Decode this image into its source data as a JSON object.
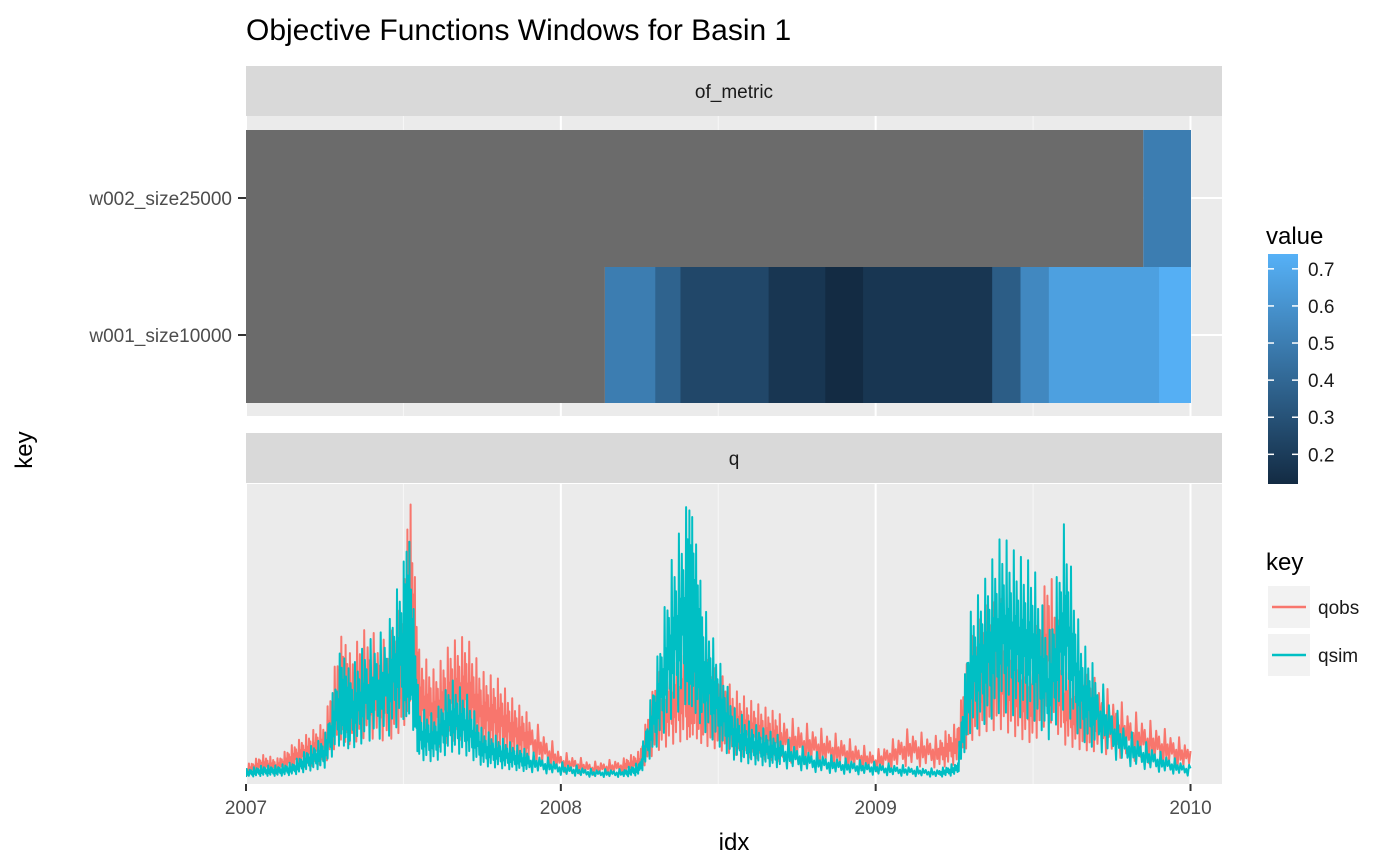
{
  "chart_data": {
    "type": "heatmap+line",
    "title": "Objective Functions Windows for Basin 1",
    "xlabel": "idx",
    "ylabel": "key",
    "xlim": [
      2007.0,
      2010.1
    ],
    "x_ticks": [
      "2007",
      "2008",
      "2009",
      "2010"
    ],
    "x_tick_values": [
      2007,
      2008,
      2009,
      2010
    ],
    "panels": [
      {
        "strip": "of_metric",
        "type": "heatmap",
        "categories": [
          "w002_size25000",
          "w001_size10000"
        ],
        "na_color": "#6b6b6b",
        "rows": [
          {
            "key": "w002_size25000",
            "start": 2007.0,
            "end": 2010.0,
            "data_start": 2009.85,
            "segments": [
              {
                "x0": 2009.85,
                "x1": 2010.0,
                "value": 0.5
              }
            ]
          },
          {
            "key": "w001_size10000",
            "start": 2007.0,
            "end": 2010.0,
            "data_start": 2008.14,
            "segments": [
              {
                "x0": 2008.14,
                "x1": 2008.3,
                "value": 0.5
              },
              {
                "x0": 2008.3,
                "x1": 2008.38,
                "value": 0.38
              },
              {
                "x0": 2008.38,
                "x1": 2008.66,
                "value": 0.25
              },
              {
                "x0": 2008.66,
                "x1": 2008.84,
                "value": 0.17
              },
              {
                "x0": 2008.84,
                "x1": 2008.96,
                "value": 0.12
              },
              {
                "x0": 2008.96,
                "x1": 2009.37,
                "value": 0.17
              },
              {
                "x0": 2009.37,
                "x1": 2009.46,
                "value": 0.35
              },
              {
                "x0": 2009.46,
                "x1": 2009.55,
                "value": 0.55
              },
              {
                "x0": 2009.55,
                "x1": 2009.9,
                "value": 0.66
              },
              {
                "x0": 2009.9,
                "x1": 2010.0,
                "value": 0.73
              }
            ]
          }
        ]
      },
      {
        "strip": "q",
        "type": "line",
        "series": [
          {
            "name": "qobs",
            "color": "#f8766d",
            "x": [
              2007.0,
              2007.05,
              2007.1,
              2007.15,
              2007.2,
              2007.25,
              2007.3,
              2007.33,
              2007.38,
              2007.45,
              2007.5,
              2007.52,
              2007.55,
              2007.6,
              2007.65,
              2007.7,
              2007.75,
              2007.8,
              2007.85,
              2007.9,
              2008.0,
              2008.1,
              2008.2,
              2008.25,
              2008.3,
              2008.35,
              2008.4,
              2008.42,
              2008.45,
              2008.5,
              2008.55,
              2008.6,
              2008.65,
              2008.7,
              2008.8,
              2008.9,
              2009.0,
              2009.1,
              2009.2,
              2009.26,
              2009.3,
              2009.35,
              2009.4,
              2009.45,
              2009.5,
              2009.55,
              2009.6,
              2009.65,
              2009.7,
              2009.8,
              2009.9,
              2010.0
            ],
            "y": [
              0.04,
              0.07,
              0.06,
              0.1,
              0.13,
              0.16,
              0.4,
              0.35,
              0.42,
              0.38,
              0.5,
              0.8,
              0.36,
              0.3,
              0.38,
              0.4,
              0.3,
              0.28,
              0.22,
              0.18,
              0.08,
              0.05,
              0.06,
              0.08,
              0.28,
              0.35,
              0.4,
              0.45,
              0.35,
              0.3,
              0.25,
              0.22,
              0.2,
              0.18,
              0.15,
              0.12,
              0.08,
              0.14,
              0.12,
              0.16,
              0.38,
              0.48,
              0.5,
              0.42,
              0.36,
              0.6,
              0.35,
              0.3,
              0.28,
              0.2,
              0.15,
              0.1
            ]
          },
          {
            "name": "qsim",
            "color": "#00bfc4",
            "x": [
              2007.0,
              2007.05,
              2007.1,
              2007.15,
              2007.2,
              2007.25,
              2007.3,
              2007.33,
              2007.38,
              2007.45,
              2007.5,
              2007.52,
              2007.55,
              2007.6,
              2007.65,
              2007.7,
              2007.75,
              2007.8,
              2007.85,
              2007.9,
              2008.0,
              2008.1,
              2008.2,
              2008.25,
              2008.3,
              2008.35,
              2008.4,
              2008.42,
              2008.45,
              2008.5,
              2008.55,
              2008.6,
              2008.65,
              2008.7,
              2008.8,
              2008.9,
              2009.0,
              2009.1,
              2009.2,
              2009.26,
              2009.3,
              2009.35,
              2009.4,
              2009.45,
              2009.5,
              2009.55,
              2009.6,
              2009.65,
              2009.7,
              2009.8,
              2009.9,
              2010.0
            ],
            "y": [
              0.03,
              0.04,
              0.04,
              0.05,
              0.09,
              0.12,
              0.36,
              0.3,
              0.38,
              0.42,
              0.6,
              0.66,
              0.2,
              0.18,
              0.28,
              0.24,
              0.14,
              0.12,
              0.1,
              0.08,
              0.05,
              0.03,
              0.03,
              0.05,
              0.3,
              0.6,
              0.76,
              0.72,
              0.5,
              0.34,
              0.2,
              0.16,
              0.14,
              0.12,
              0.08,
              0.06,
              0.05,
              0.04,
              0.03,
              0.05,
              0.46,
              0.56,
              0.68,
              0.62,
              0.6,
              0.4,
              0.72,
              0.4,
              0.3,
              0.14,
              0.08,
              0.04
            ]
          }
        ]
      }
    ],
    "colorbar": {
      "title": "value",
      "min": 0.12,
      "max": 0.74,
      "ticks": [
        "0.2",
        "0.3",
        "0.4",
        "0.5",
        "0.6",
        "0.7"
      ],
      "tick_values": [
        0.2,
        0.3,
        0.4,
        0.5,
        0.6,
        0.7
      ],
      "low_color": "#132b43",
      "high_color": "#56b1f7"
    },
    "legend": {
      "title": "key",
      "placement": "right",
      "items": [
        {
          "label": "qobs",
          "color": "#f8766d"
        },
        {
          "label": "qsim",
          "color": "#00bfc4"
        }
      ]
    },
    "grid": true
  }
}
